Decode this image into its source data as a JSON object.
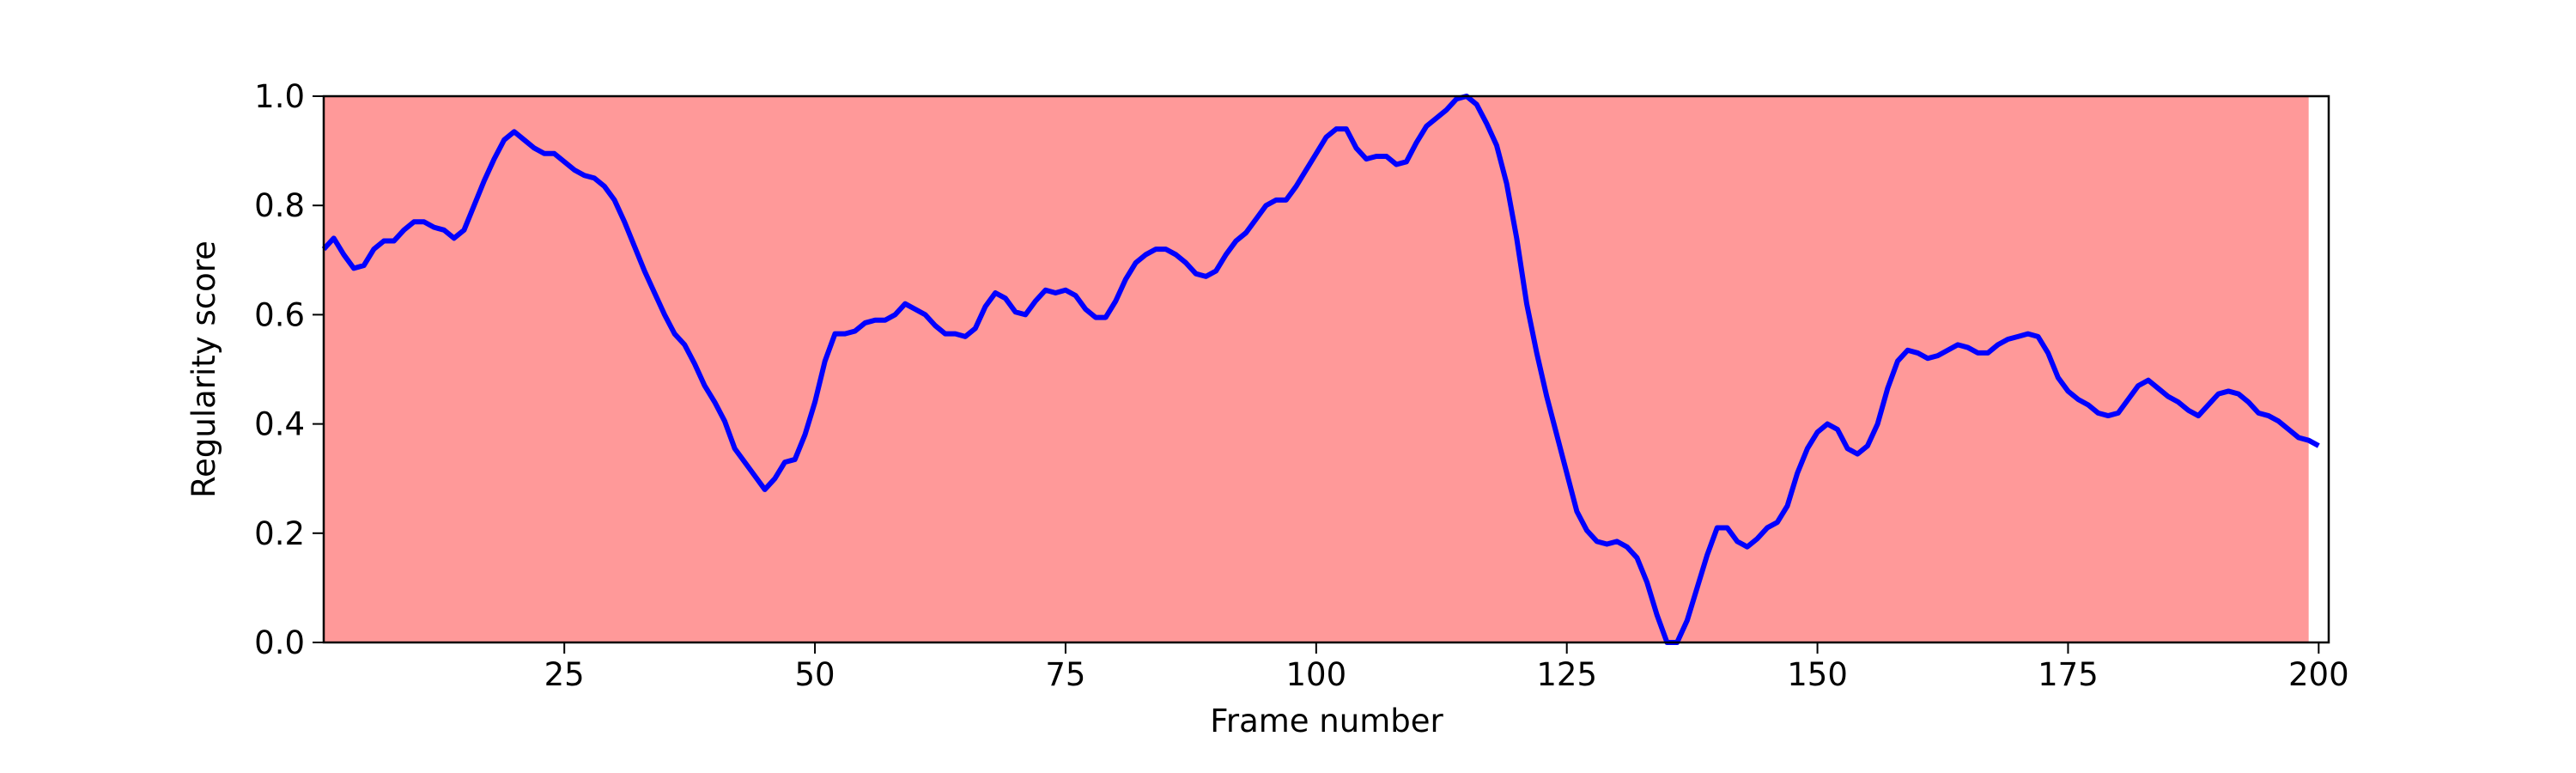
{
  "chart_data": {
    "type": "line",
    "xlabel": "Frame number",
    "ylabel": "Regularity score",
    "x": [
      1,
      2,
      3,
      4,
      5,
      6,
      7,
      8,
      9,
      10,
      11,
      12,
      13,
      14,
      15,
      16,
      17,
      18,
      19,
      20,
      21,
      22,
      23,
      24,
      25,
      26,
      27,
      28,
      29,
      30,
      31,
      32,
      33,
      34,
      35,
      36,
      37,
      38,
      39,
      40,
      41,
      42,
      43,
      44,
      45,
      46,
      47,
      48,
      49,
      50,
      51,
      52,
      53,
      54,
      55,
      56,
      57,
      58,
      59,
      60,
      61,
      62,
      63,
      64,
      65,
      66,
      67,
      68,
      69,
      70,
      71,
      72,
      73,
      74,
      75,
      76,
      77,
      78,
      79,
      80,
      81,
      82,
      83,
      84,
      85,
      86,
      87,
      88,
      89,
      90,
      91,
      92,
      93,
      94,
      95,
      96,
      97,
      98,
      99,
      100,
      101,
      102,
      103,
      104,
      105,
      106,
      107,
      108,
      109,
      110,
      111,
      112,
      113,
      114,
      115,
      116,
      117,
      118,
      119,
      120,
      121,
      122,
      123,
      124,
      125,
      126,
      127,
      128,
      129,
      130,
      131,
      132,
      133,
      134,
      135,
      136,
      137,
      138,
      139,
      140,
      141,
      142,
      143,
      144,
      145,
      146,
      147,
      148,
      149,
      150,
      151,
      152,
      153,
      154,
      155,
      156,
      157,
      158,
      159,
      160,
      161,
      162,
      163,
      164,
      165,
      166,
      167,
      168,
      169,
      170,
      171,
      172,
      173,
      174,
      175,
      176,
      177,
      178,
      179,
      180,
      181,
      182,
      183,
      184,
      185,
      186,
      187,
      188,
      189,
      190,
      191,
      192,
      193,
      194,
      195,
      196,
      197,
      198,
      199,
      200
    ],
    "values": [
      0.72,
      0.74,
      0.71,
      0.685,
      0.69,
      0.72,
      0.735,
      0.735,
      0.755,
      0.77,
      0.77,
      0.76,
      0.755,
      0.74,
      0.755,
      0.8,
      0.845,
      0.885,
      0.92,
      0.935,
      0.92,
      0.905,
      0.895,
      0.895,
      0.88,
      0.865,
      0.855,
      0.85,
      0.835,
      0.81,
      0.77,
      0.725,
      0.68,
      0.64,
      0.6,
      0.565,
      0.545,
      0.51,
      0.47,
      0.44,
      0.405,
      0.355,
      0.33,
      0.305,
      0.28,
      0.3,
      0.33,
      0.335,
      0.38,
      0.44,
      0.515,
      0.565,
      0.565,
      0.57,
      0.585,
      0.59,
      0.59,
      0.6,
      0.62,
      0.61,
      0.6,
      0.58,
      0.565,
      0.565,
      0.56,
      0.575,
      0.615,
      0.64,
      0.63,
      0.605,
      0.6,
      0.625,
      0.645,
      0.64,
      0.645,
      0.635,
      0.61,
      0.595,
      0.595,
      0.625,
      0.665,
      0.695,
      0.71,
      0.72,
      0.72,
      0.71,
      0.695,
      0.675,
      0.67,
      0.68,
      0.71,
      0.735,
      0.75,
      0.775,
      0.8,
      0.81,
      0.81,
      0.835,
      0.865,
      0.895,
      0.925,
      0.94,
      0.94,
      0.905,
      0.885,
      0.89,
      0.89,
      0.875,
      0.88,
      0.915,
      0.945,
      0.96,
      0.975,
      0.995,
      1.0,
      0.985,
      0.95,
      0.91,
      0.84,
      0.74,
      0.62,
      0.53,
      0.45,
      0.38,
      0.31,
      0.24,
      0.205,
      0.185,
      0.18,
      0.185,
      0.175,
      0.155,
      0.11,
      0.05,
      0.0,
      0.0,
      0.04,
      0.1,
      0.16,
      0.21,
      0.21,
      0.185,
      0.175,
      0.19,
      0.21,
      0.22,
      0.25,
      0.31,
      0.355,
      0.385,
      0.4,
      0.39,
      0.355,
      0.345,
      0.36,
      0.4,
      0.465,
      0.515,
      0.535,
      0.53,
      0.52,
      0.525,
      0.535,
      0.545,
      0.54,
      0.53,
      0.53,
      0.545,
      0.555,
      0.56,
      0.565,
      0.56,
      0.53,
      0.485,
      0.46,
      0.445,
      0.435,
      0.42,
      0.415,
      0.42,
      0.445,
      0.47,
      0.48,
      0.465,
      0.45,
      0.44,
      0.425,
      0.415,
      0.435,
      0.455,
      0.46,
      0.455,
      0.44,
      0.42,
      0.415,
      0.405,
      0.39,
      0.375,
      0.37,
      0.36
    ],
    "color": "#0000ff",
    "shaded_span": [
      1,
      199
    ],
    "shaded_color": "#ff9999",
    "xlim": [
      1,
      201
    ],
    "xticks": [
      25,
      50,
      75,
      100,
      125,
      150,
      175,
      200
    ],
    "ylim": [
      0,
      1
    ],
    "yticks": [
      {
        "value": 0,
        "label": "0.0"
      },
      {
        "value": 0.2,
        "label": "0.2"
      },
      {
        "value": 0.4,
        "label": "0.4"
      },
      {
        "value": 0.6,
        "label": "0.6"
      },
      {
        "value": 0.8,
        "label": "0.8"
      },
      {
        "value": 1,
        "label": "1.0"
      }
    ],
    "grid": false
  }
}
